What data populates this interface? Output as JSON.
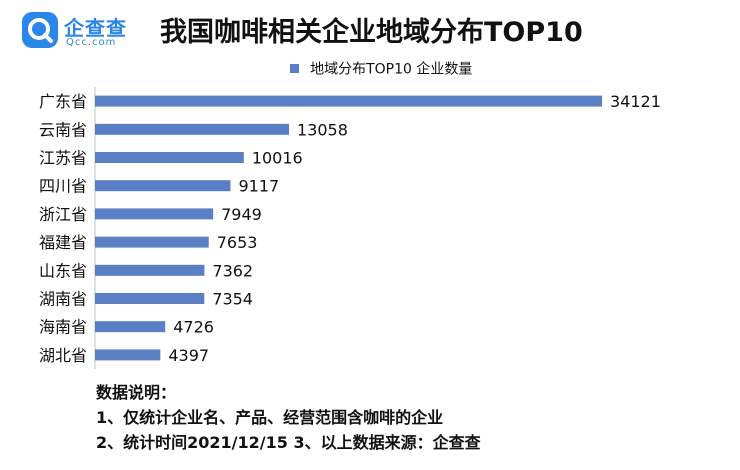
{
  "brand": {
    "name_cn": "企查查",
    "name_en": "Qcc.com",
    "color": "#2a86e8"
  },
  "chart_data": {
    "type": "bar",
    "orientation": "horizontal",
    "title": "我国咖啡相关企业地域分布TOP10",
    "categories": [
      "广东省",
      "云南省",
      "江苏省",
      "四川省",
      "浙江省",
      "福建省",
      "山东省",
      "湖南省",
      "海南省",
      "湖北省"
    ],
    "series": [
      {
        "name": "地域分布TOP10 企业数量",
        "values": [
          34121,
          13058,
          10016,
          9117,
          7949,
          7653,
          7362,
          7354,
          4726,
          4397
        ],
        "color": "#5b7fc4"
      }
    ],
    "xlim": [
      0,
      34121
    ],
    "grid": false,
    "legend_position": "top"
  },
  "notes": {
    "heading": "数据说明：",
    "line1": "1、仅统计企业名、产品、经营范围含咖啡的企业",
    "line2": "2、统计时间2021/12/15    3、以上数据来源：企查查"
  }
}
